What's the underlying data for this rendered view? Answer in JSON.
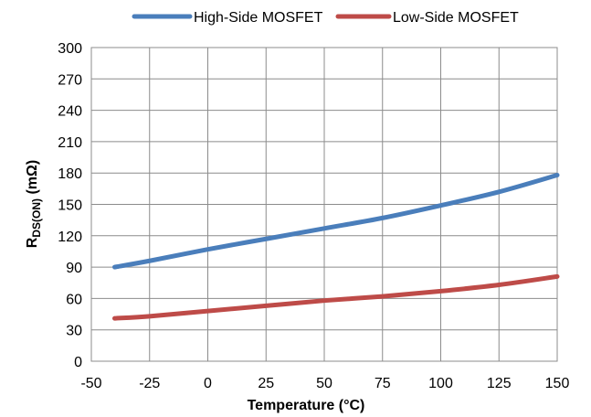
{
  "chart_data": {
    "type": "line",
    "title": "",
    "xlabel": "Temperature (°C)",
    "ylabel": {
      "main": "R",
      "sub": "DS(ON)",
      "unit": " (mΩ)"
    },
    "xlim": [
      -50,
      150
    ],
    "ylim": [
      0,
      300
    ],
    "x_ticks": [
      "-50",
      "-25",
      "0",
      "25",
      "50",
      "75",
      "100",
      "125",
      "150"
    ],
    "y_ticks": [
      "0",
      "30",
      "60",
      "90",
      "120",
      "150",
      "180",
      "210",
      "240",
      "270",
      "300"
    ],
    "grid": true,
    "legend_position": "top",
    "x": [
      -40,
      -25,
      0,
      25,
      50,
      75,
      100,
      125,
      150
    ],
    "series": [
      {
        "name": "High-Side MOSFET",
        "color": "#4a7ebb",
        "values": [
          90,
          96,
          107,
          117,
          127,
          137,
          149,
          162,
          178
        ]
      },
      {
        "name": "Low-Side MOSFET",
        "color": "#be4b48",
        "values": [
          41,
          43,
          48,
          53,
          58,
          62,
          67,
          73,
          81
        ]
      }
    ]
  }
}
